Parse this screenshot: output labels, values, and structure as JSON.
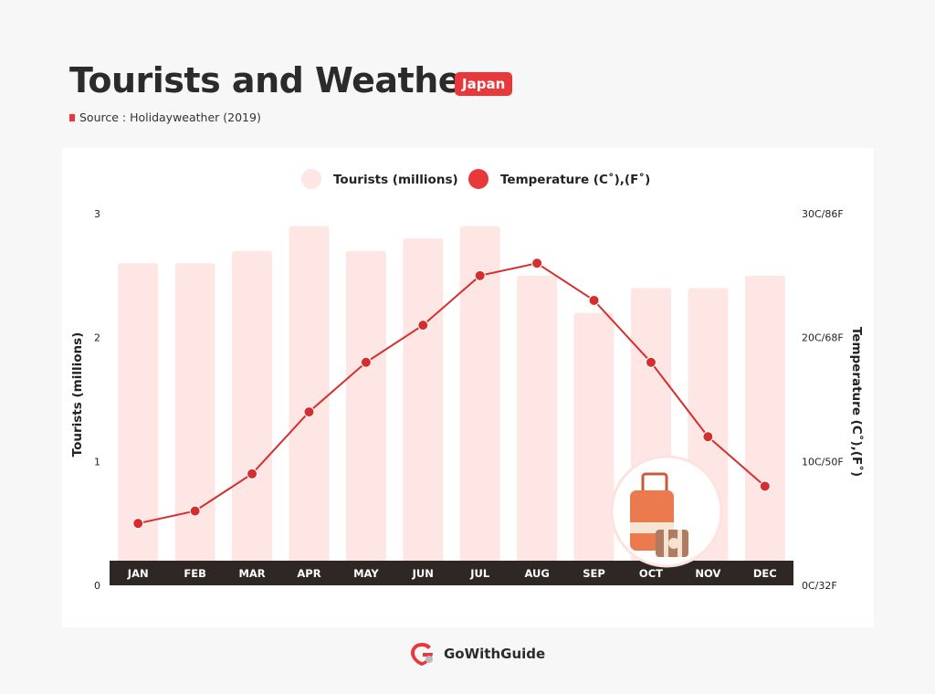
{
  "header": {
    "title": "Tourists and Weather",
    "badge": "Japan",
    "source": "Source : Holidayweather (2019)"
  },
  "footer": {
    "brand": "GoWithGuide"
  },
  "colors": {
    "bar": "#fde6e3",
    "line": "#d62e2e",
    "accent": "#e8383b",
    "axisband": "#2f2723"
  },
  "chart_data": {
    "type": "bar",
    "categories": [
      "JAN",
      "FEB",
      "MAR",
      "APR",
      "MAY",
      "JUN",
      "JUL",
      "AUG",
      "SEP",
      "OCT",
      "NOV",
      "DEC"
    ],
    "legend": [
      "Tourists (millions)",
      "Temperature (C˚),(F˚)"
    ],
    "legend_position": "top-center",
    "series": [
      {
        "name": "Tourists (millions)",
        "type": "bar",
        "axis": "left",
        "values": [
          2.6,
          2.6,
          2.7,
          2.9,
          2.7,
          2.8,
          2.9,
          2.5,
          2.2,
          2.4,
          2.4,
          2.5
        ]
      },
      {
        "name": "Temperature (C˚),(F˚)",
        "type": "line",
        "axis": "right",
        "values": [
          5,
          6,
          9,
          14,
          18,
          21,
          25,
          26,
          23,
          18,
          12,
          8
        ]
      }
    ],
    "y_left": {
      "label": "Tourists (millions)",
      "range": [
        0,
        3
      ],
      "ticks": [
        "0",
        "1",
        "2",
        "3"
      ]
    },
    "y_right": {
      "label": "Temperature (C˚),(F˚)",
      "range": [
        0,
        30
      ],
      "ticks": [
        "0C/32F",
        "10C/50F",
        "20C/68F",
        "30C/86F"
      ]
    },
    "grid": false
  }
}
